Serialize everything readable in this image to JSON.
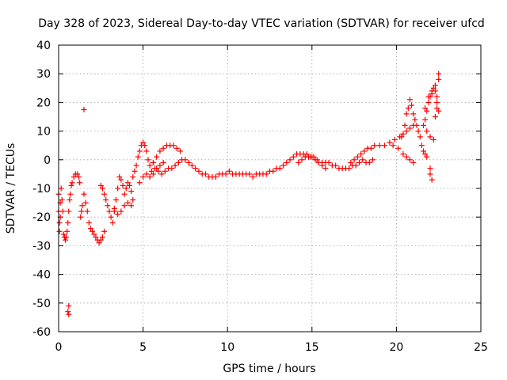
{
  "chart_data": {
    "type": "scatter",
    "title": "Day 328 of 2023, Sidereal Day-to-day VTEC variation (SDTVAR) for receiver ufcd",
    "xlabel": "GPS time / hours",
    "ylabel": "SDTVAR / TECUs",
    "xlim": [
      0,
      25
    ],
    "ylim": [
      -60,
      40
    ],
    "xticks": [
      0,
      5,
      10,
      15,
      20,
      25
    ],
    "yticks": [
      -60,
      -50,
      -40,
      -30,
      -20,
      -10,
      0,
      10,
      20,
      30,
      40
    ],
    "xtick_labels": [
      "0",
      "5",
      "10",
      "15",
      "20",
      "25"
    ],
    "ytick_labels": [
      "-60",
      "-50",
      "-40",
      "-30",
      "-20",
      "-10",
      "0",
      "10",
      "20",
      "30",
      "40"
    ],
    "grid": true,
    "marker": "+",
    "color": "#ff0000",
    "series": [
      {
        "name": "SDTVAR",
        "points": [
          [
            0.0,
            -12
          ],
          [
            0.0,
            -18
          ],
          [
            0.05,
            -22
          ],
          [
            0.05,
            -25
          ],
          [
            0.1,
            -15
          ],
          [
            0.1,
            -20
          ],
          [
            0.15,
            -10
          ],
          [
            0.2,
            -14
          ],
          [
            0.25,
            -18
          ],
          [
            0.3,
            -26
          ],
          [
            0.35,
            -27
          ],
          [
            0.4,
            -28
          ],
          [
            0.45,
            -27
          ],
          [
            0.5,
            -25
          ],
          [
            0.55,
            -22
          ],
          [
            0.6,
            -18
          ],
          [
            0.65,
            -14
          ],
          [
            0.7,
            -12
          ],
          [
            0.75,
            -9
          ],
          [
            0.8,
            -8
          ],
          [
            0.9,
            -6
          ],
          [
            1.0,
            -5
          ],
          [
            1.1,
            -5
          ],
          [
            1.2,
            -6
          ],
          [
            1.25,
            -8
          ],
          [
            0.55,
            -53
          ],
          [
            0.6,
            -51
          ],
          [
            0.6,
            -54
          ],
          [
            1.5,
            17.5
          ],
          [
            1.3,
            -20
          ],
          [
            1.35,
            -18
          ],
          [
            1.4,
            -16
          ],
          [
            1.5,
            -12
          ],
          [
            1.6,
            -15
          ],
          [
            1.7,
            -18
          ],
          [
            1.8,
            -22
          ],
          [
            1.9,
            -24
          ],
          [
            2.0,
            -25
          ],
          [
            2.1,
            -26
          ],
          [
            2.2,
            -27
          ],
          [
            2.3,
            -28
          ],
          [
            2.4,
            -29
          ],
          [
            2.5,
            -28
          ],
          [
            2.6,
            -27
          ],
          [
            2.7,
            -25
          ],
          [
            2.5,
            -9
          ],
          [
            2.6,
            -10
          ],
          [
            2.7,
            -12
          ],
          [
            2.8,
            -14
          ],
          [
            2.9,
            -16
          ],
          [
            3.0,
            -18
          ],
          [
            3.1,
            -20
          ],
          [
            3.2,
            -22
          ],
          [
            3.3,
            -18
          ],
          [
            3.4,
            -14
          ],
          [
            3.5,
            -10
          ],
          [
            3.6,
            -6
          ],
          [
            3.7,
            -7
          ],
          [
            3.8,
            -9
          ],
          [
            3.9,
            -12
          ],
          [
            3.3,
            -17
          ],
          [
            3.5,
            -19
          ],
          [
            3.7,
            -18
          ],
          [
            3.9,
            -16
          ],
          [
            4.1,
            -15
          ],
          [
            4.3,
            -16
          ],
          [
            4.4,
            -14
          ],
          [
            4.0,
            -10
          ],
          [
            4.1,
            -8
          ],
          [
            4.2,
            -9
          ],
          [
            4.3,
            -11
          ],
          [
            4.4,
            -6
          ],
          [
            4.5,
            -4
          ],
          [
            4.6,
            -2
          ],
          [
            4.7,
            1
          ],
          [
            4.8,
            3
          ],
          [
            4.9,
            5
          ],
          [
            5.0,
            6
          ],
          [
            5.1,
            5
          ],
          [
            5.2,
            3
          ],
          [
            5.3,
            0
          ],
          [
            5.4,
            -2
          ],
          [
            5.5,
            -4
          ],
          [
            4.8,
            -8
          ],
          [
            5.0,
            -6
          ],
          [
            5.2,
            -5
          ],
          [
            5.4,
            -6
          ],
          [
            5.6,
            -5
          ],
          [
            5.8,
            -3
          ],
          [
            6.0,
            -2
          ],
          [
            6.2,
            -1
          ],
          [
            5.6,
            -1
          ],
          [
            5.8,
            1
          ],
          [
            6.0,
            3
          ],
          [
            6.2,
            4
          ],
          [
            6.4,
            5
          ],
          [
            6.6,
            5
          ],
          [
            6.8,
            5
          ],
          [
            7.0,
            4
          ],
          [
            7.2,
            3
          ],
          [
            5.7,
            -3
          ],
          [
            5.9,
            -4
          ],
          [
            6.1,
            -5
          ],
          [
            6.3,
            -4
          ],
          [
            6.5,
            -3
          ],
          [
            6.7,
            -3
          ],
          [
            6.9,
            -2
          ],
          [
            7.1,
            -1
          ],
          [
            7.3,
            0
          ],
          [
            7.5,
            0
          ],
          [
            7.7,
            -1
          ],
          [
            7.9,
            -2
          ],
          [
            8.1,
            -3
          ],
          [
            8.3,
            -4
          ],
          [
            8.5,
            -5
          ],
          [
            8.7,
            -5
          ],
          [
            8.9,
            -6
          ],
          [
            9.1,
            -6
          ],
          [
            9.3,
            -6
          ],
          [
            9.5,
            -5
          ],
          [
            9.7,
            -5
          ],
          [
            9.9,
            -5
          ],
          [
            10.1,
            -4
          ],
          [
            10.3,
            -5
          ],
          [
            10.5,
            -5
          ],
          [
            10.7,
            -5
          ],
          [
            10.9,
            -5
          ],
          [
            11.1,
            -5
          ],
          [
            11.3,
            -5
          ],
          [
            11.5,
            -6
          ],
          [
            11.7,
            -5
          ],
          [
            11.9,
            -5
          ],
          [
            12.1,
            -5
          ],
          [
            12.3,
            -5
          ],
          [
            12.5,
            -4
          ],
          [
            12.7,
            -4
          ],
          [
            12.9,
            -3
          ],
          [
            13.1,
            -3
          ],
          [
            13.3,
            -2
          ],
          [
            13.5,
            -1
          ],
          [
            13.7,
            0
          ],
          [
            13.9,
            1
          ],
          [
            14.1,
            2
          ],
          [
            14.3,
            2
          ],
          [
            14.5,
            2
          ],
          [
            14.7,
            2
          ],
          [
            14.9,
            1
          ],
          [
            15.1,
            1
          ],
          [
            15.3,
            0
          ],
          [
            14.2,
            -1
          ],
          [
            14.4,
            0
          ],
          [
            14.6,
            1
          ],
          [
            14.8,
            1
          ],
          [
            15.0,
            1
          ],
          [
            15.2,
            0
          ],
          [
            15.4,
            -1
          ],
          [
            15.6,
            -2
          ],
          [
            15.8,
            -3
          ],
          [
            15.6,
            -1
          ],
          [
            15.8,
            -1
          ],
          [
            16.0,
            -1
          ],
          [
            16.2,
            -2
          ],
          [
            16.4,
            -2
          ],
          [
            16.6,
            -3
          ],
          [
            16.8,
            -3
          ],
          [
            17.0,
            -3
          ],
          [
            17.2,
            -3
          ],
          [
            17.4,
            -2
          ],
          [
            17.6,
            -2
          ],
          [
            17.8,
            -1
          ],
          [
            18.0,
            0
          ],
          [
            18.2,
            -1
          ],
          [
            18.4,
            -1
          ],
          [
            18.6,
            0
          ],
          [
            17.3,
            -1
          ],
          [
            17.5,
            0
          ],
          [
            17.7,
            1
          ],
          [
            17.9,
            2
          ],
          [
            18.1,
            3
          ],
          [
            18.3,
            4
          ],
          [
            18.5,
            4
          ],
          [
            18.7,
            5
          ],
          [
            19.0,
            5
          ],
          [
            19.3,
            5
          ],
          [
            19.6,
            6
          ],
          [
            19.9,
            7
          ],
          [
            20.2,
            8
          ],
          [
            20.4,
            9
          ],
          [
            20.6,
            10
          ],
          [
            20.8,
            11
          ],
          [
            21.0,
            12
          ],
          [
            19.8,
            5
          ],
          [
            20.1,
            4
          ],
          [
            20.4,
            2
          ],
          [
            20.6,
            1
          ],
          [
            20.8,
            0
          ],
          [
            21.0,
            -1
          ],
          [
            20.3,
            8
          ],
          [
            20.5,
            12
          ],
          [
            20.6,
            16
          ],
          [
            20.7,
            18
          ],
          [
            20.8,
            21
          ],
          [
            20.9,
            19
          ],
          [
            21.0,
            16
          ],
          [
            21.1,
            14
          ],
          [
            21.2,
            12
          ],
          [
            21.3,
            10
          ],
          [
            21.4,
            8
          ],
          [
            21.5,
            5
          ],
          [
            21.6,
            3
          ],
          [
            21.7,
            2
          ],
          [
            21.8,
            1
          ],
          [
            21.6,
            12
          ],
          [
            21.7,
            14
          ],
          [
            21.8,
            17
          ],
          [
            21.9,
            20
          ],
          [
            22.0,
            22
          ],
          [
            22.1,
            23
          ],
          [
            22.2,
            25
          ],
          [
            22.3,
            26
          ],
          [
            21.7,
            18
          ],
          [
            21.9,
            22
          ],
          [
            22.1,
            24
          ],
          [
            22.3,
            24
          ],
          [
            22.4,
            22
          ],
          [
            21.8,
            10
          ],
          [
            22.0,
            8
          ],
          [
            22.2,
            7
          ],
          [
            22.0,
            -3
          ],
          [
            22.0,
            -5
          ],
          [
            22.1,
            -7
          ],
          [
            22.3,
            15
          ],
          [
            22.4,
            18
          ],
          [
            22.4,
            20
          ],
          [
            22.5,
            28
          ],
          [
            22.5,
            30
          ],
          [
            22.5,
            17
          ]
        ]
      }
    ]
  }
}
